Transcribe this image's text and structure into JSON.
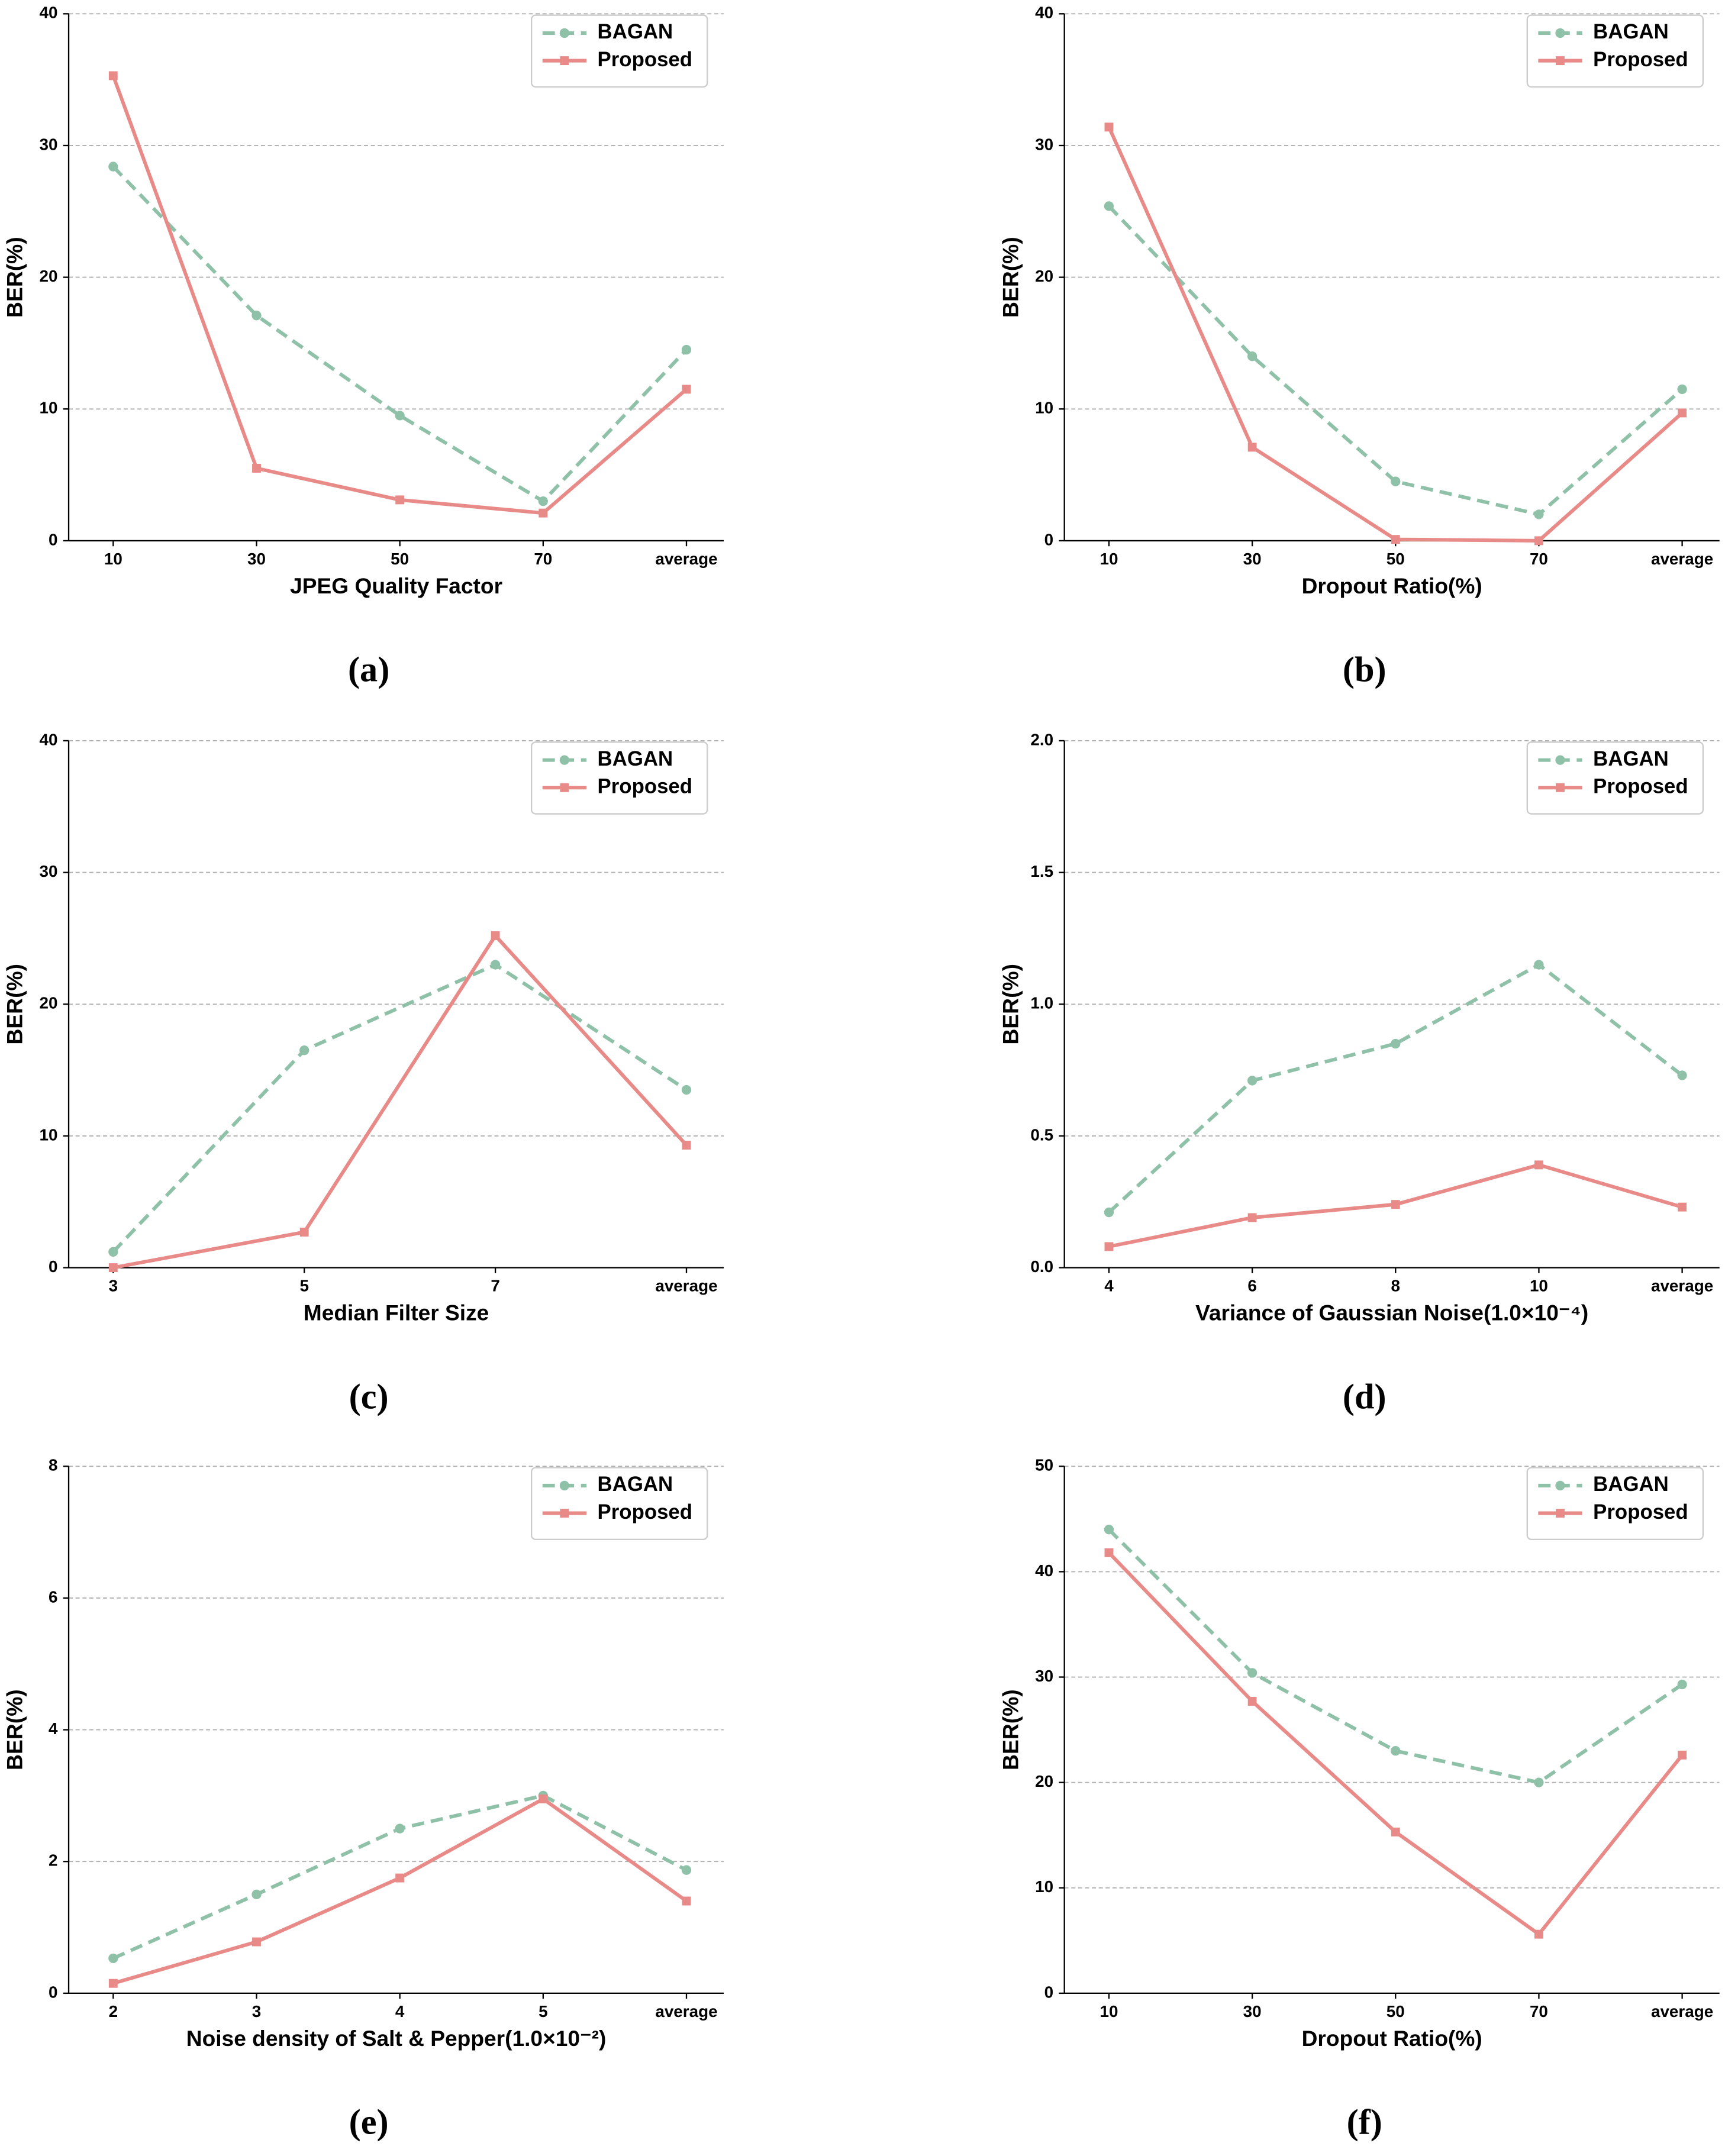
{
  "chart_data": [
    {
      "type": "line",
      "caption": "(a)",
      "x_label": "JPEG Quality Factor",
      "y_label": "BER(%)",
      "categories": [
        "10",
        "30",
        "50",
        "70",
        "average"
      ],
      "series": [
        {
          "name": "BAGAN",
          "color": "#8fc1a9",
          "dashed": true,
          "marker": "circle",
          "values": [
            28.4,
            17.1,
            9.5,
            3.0,
            14.5
          ]
        },
        {
          "name": "Proposed",
          "color": "#e88a87",
          "dashed": false,
          "marker": "square",
          "values": [
            35.3,
            5.5,
            3.1,
            2.1,
            11.5
          ]
        }
      ],
      "ylim": [
        0,
        40
      ],
      "yticks": [
        0,
        10,
        20,
        30,
        40
      ],
      "grid": true,
      "legend": "upper right"
    },
    {
      "type": "line",
      "caption": "(b)",
      "x_label": "Dropout Ratio(%)",
      "y_label": "BER(%)",
      "categories": [
        "10",
        "30",
        "50",
        "70",
        "average"
      ],
      "series": [
        {
          "name": "BAGAN",
          "color": "#8fc1a9",
          "dashed": true,
          "marker": "circle",
          "values": [
            25.4,
            14.0,
            4.5,
            2.0,
            11.5
          ]
        },
        {
          "name": "Proposed",
          "color": "#e88a87",
          "dashed": false,
          "marker": "square",
          "values": [
            31.4,
            7.1,
            0.1,
            0.0,
            9.7
          ]
        }
      ],
      "ylim": [
        0,
        40
      ],
      "yticks": [
        0,
        10,
        20,
        30,
        40
      ],
      "grid": true,
      "legend": "upper right"
    },
    {
      "type": "line",
      "caption": "(c)",
      "x_label": "Median Filter Size",
      "y_label": "BER(%)",
      "categories": [
        "3",
        "5",
        "7",
        "average"
      ],
      "series": [
        {
          "name": "BAGAN",
          "color": "#8fc1a9",
          "dashed": true,
          "marker": "circle",
          "values": [
            1.2,
            16.5,
            23.0,
            13.5
          ]
        },
        {
          "name": "Proposed",
          "color": "#e88a87",
          "dashed": false,
          "marker": "square",
          "values": [
            0.0,
            2.7,
            25.2,
            9.3
          ]
        }
      ],
      "ylim": [
        0,
        40
      ],
      "yticks": [
        0,
        10,
        20,
        30,
        40
      ],
      "grid": true,
      "legend": "upper right"
    },
    {
      "type": "line",
      "caption": "(d)",
      "x_label": "Variance of Gaussian Noise(1.0×10⁻⁴)",
      "y_label": "BER(%)",
      "categories": [
        "4",
        "6",
        "8",
        "10",
        "average"
      ],
      "series": [
        {
          "name": "BAGAN",
          "color": "#8fc1a9",
          "dashed": true,
          "marker": "circle",
          "values": [
            0.21,
            0.71,
            0.85,
            1.15,
            0.73
          ]
        },
        {
          "name": "Proposed",
          "color": "#e88a87",
          "dashed": false,
          "marker": "square",
          "values": [
            0.08,
            0.19,
            0.24,
            0.39,
            0.23
          ]
        }
      ],
      "ylim": [
        0,
        2
      ],
      "yticks": [
        {
          "value": 0,
          "label": "0.0"
        },
        0.5,
        {
          "value": 1,
          "label": "1.0"
        },
        1.5,
        {
          "value": 2,
          "label": "2.0"
        }
      ],
      "grid": true,
      "legend": "upper right"
    },
    {
      "type": "line",
      "caption": "(e)",
      "x_label": "Noise density of Salt & Pepper(1.0×10⁻²)",
      "y_label": "BER(%)",
      "categories": [
        "2",
        "3",
        "4",
        "5",
        "average"
      ],
      "series": [
        {
          "name": "BAGAN",
          "color": "#8fc1a9",
          "dashed": true,
          "marker": "circle",
          "values": [
            0.53,
            1.5,
            2.5,
            3.0,
            1.87
          ]
        },
        {
          "name": "Proposed",
          "color": "#e88a87",
          "dashed": false,
          "marker": "square",
          "values": [
            0.15,
            0.78,
            1.75,
            2.95,
            1.4
          ]
        }
      ],
      "ylim": [
        0,
        8
      ],
      "yticks": [
        0,
        2,
        4,
        6,
        8
      ],
      "grid": true,
      "legend": "upper right"
    },
    {
      "type": "line",
      "caption": "(f)",
      "x_label": "Dropout Ratio(%)",
      "y_label": "BER(%)",
      "categories": [
        "10",
        "30",
        "50",
        "70",
        "average"
      ],
      "series": [
        {
          "name": "BAGAN",
          "color": "#8fc1a9",
          "dashed": true,
          "marker": "circle",
          "values": [
            44.0,
            30.4,
            23.0,
            20.0,
            29.3
          ]
        },
        {
          "name": "Proposed",
          "color": "#e88a87",
          "dashed": false,
          "marker": "square",
          "values": [
            41.8,
            27.7,
            15.3,
            5.6,
            22.6
          ]
        }
      ],
      "ylim": [
        0,
        50
      ],
      "yticks": [
        0,
        10,
        20,
        30,
        40,
        50
      ],
      "grid": true,
      "legend": "upper right"
    }
  ]
}
